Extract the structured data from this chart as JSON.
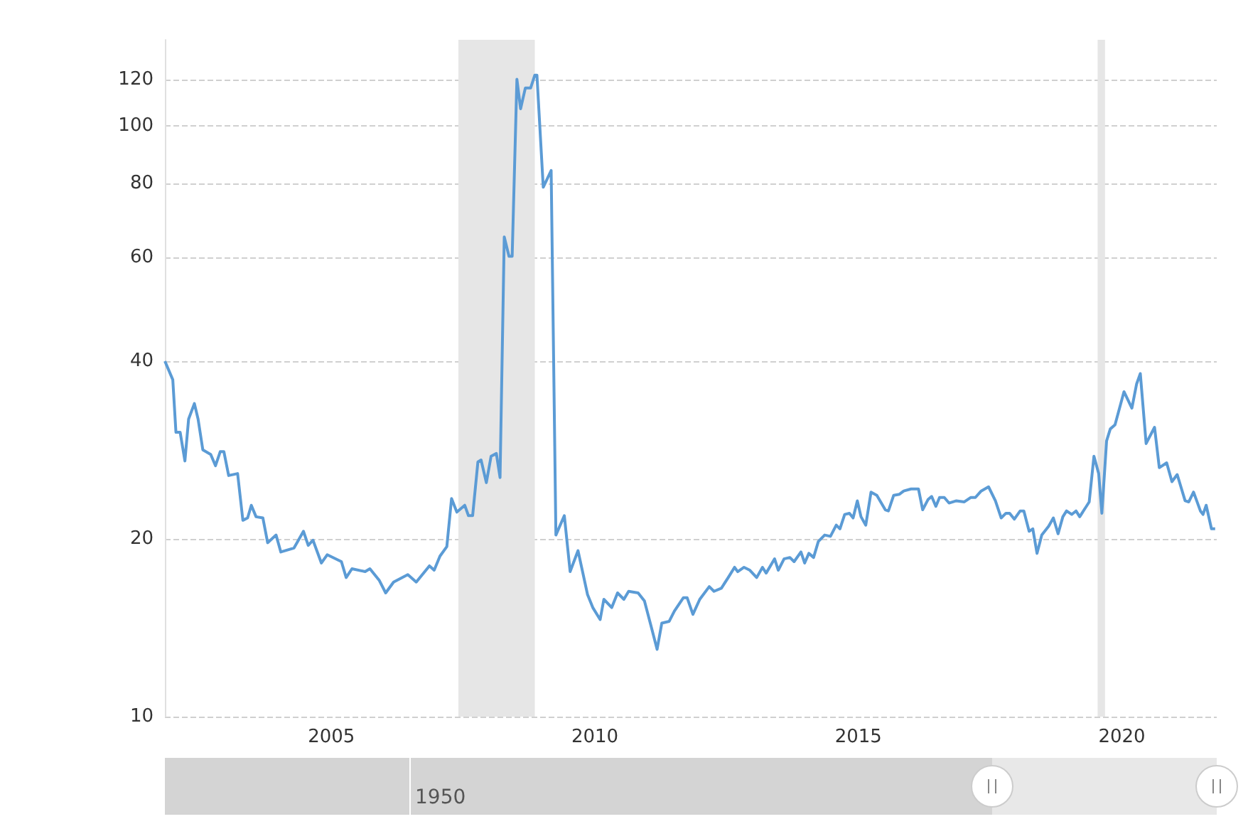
{
  "chart_data": {
    "type": "line",
    "x": [
      2001.84,
      2001.99,
      2002.05,
      2002.13,
      2002.22,
      2002.29,
      2002.4,
      2002.47,
      2002.56,
      2002.71,
      2002.8,
      2002.89,
      2002.96,
      2003.05,
      2003.22,
      2003.32,
      2003.41,
      2003.48,
      2003.57,
      2003.7,
      2003.79,
      2003.95,
      2004.04,
      2004.29,
      2004.47,
      2004.56,
      2004.65,
      2004.81,
      2004.92,
      2005.19,
      2005.28,
      2005.39,
      2005.64,
      2005.73,
      2005.91,
      2006.03,
      2006.18,
      2006.45,
      2006.61,
      2006.86,
      2006.95,
      2007.06,
      2007.19,
      2007.28,
      2007.38,
      2007.53,
      2007.6,
      2007.68,
      2007.78,
      2007.84,
      2007.94,
      2008.03,
      2008.13,
      2008.2,
      2008.28,
      2008.37,
      2008.43,
      2008.52,
      2008.59,
      2008.68,
      2008.78,
      2008.86,
      2008.9,
      2009.02,
      2009.17,
      2009.26,
      2009.42,
      2009.53,
      2009.68,
      2009.86,
      2009.96,
      2010.1,
      2010.17,
      2010.32,
      2010.43,
      2010.55,
      2010.64,
      2010.82,
      2010.94,
      2011.06,
      2011.18,
      2011.27,
      2011.41,
      2011.51,
      2011.68,
      2011.75,
      2011.86,
      2011.99,
      2012.17,
      2012.26,
      2012.4,
      2012.53,
      2012.65,
      2012.71,
      2012.83,
      2012.94,
      2013.07,
      2013.18,
      2013.25,
      2013.41,
      2013.48,
      2013.59,
      2013.7,
      2013.78,
      2013.91,
      2013.98,
      2014.06,
      2014.15,
      2014.24,
      2014.36,
      2014.47,
      2014.58,
      2014.65,
      2014.74,
      2014.83,
      2014.9,
      2014.98,
      2015.05,
      2015.14,
      2015.24,
      2015.35,
      2015.51,
      2015.57,
      2015.67,
      2015.78,
      2015.86,
      2016.0,
      2016.14,
      2016.22,
      2016.32,
      2016.39,
      2016.47,
      2016.54,
      2016.63,
      2016.72,
      2016.86,
      2017.01,
      2017.13,
      2017.22,
      2017.33,
      2017.47,
      2017.6,
      2017.71,
      2017.8,
      2017.87,
      2017.96,
      2018.07,
      2018.14,
      2018.24,
      2018.31,
      2018.39,
      2018.48,
      2018.61,
      2018.7,
      2018.79,
      2018.88,
      2018.95,
      2019.05,
      2019.13,
      2019.2,
      2019.38,
      2019.47,
      2019.56,
      2019.62,
      2019.71,
      2019.78,
      2019.87,
      2020.04,
      2020.19,
      2020.28,
      2020.35,
      2020.46,
      2020.62,
      2020.71,
      2020.85,
      2020.95,
      2021.05,
      2021.2,
      2021.27,
      2021.36,
      2021.49,
      2021.54,
      2021.6,
      2021.7,
      2021.77
    ],
    "series": [
      {
        "color": "#5b9bd5",
        "values": [
          40,
          37.2,
          30.3,
          30.3,
          27.1,
          31.9,
          33.9,
          31.9,
          28.3,
          27.8,
          26.6,
          28.1,
          28.1,
          25.6,
          25.8,
          21.5,
          21.7,
          22.8,
          21.8,
          21.7,
          19.7,
          20.3,
          19.0,
          19.3,
          20.6,
          19.5,
          19.9,
          18.2,
          18.8,
          18.3,
          17.2,
          17.8,
          17.6,
          17.8,
          17.0,
          16.2,
          16.9,
          17.4,
          16.9,
          18.0,
          17.7,
          18.7,
          19.4,
          23.4,
          22.2,
          22.8,
          21.9,
          21.9,
          27.0,
          27.2,
          24.9,
          27.6,
          27.9,
          25.4,
          64.9,
          60.2,
          60.2,
          120,
          107,
          116,
          116,
          122,
          122,
          78.8,
          84.1,
          20.3,
          21.9,
          17.6,
          19.1,
          16.1,
          15.3,
          14.6,
          15.8,
          15.3,
          16.2,
          15.8,
          16.3,
          16.2,
          15.7,
          14.3,
          13.0,
          14.4,
          14.5,
          15.1,
          15.9,
          15.9,
          14.9,
          15.8,
          16.6,
          16.3,
          16.5,
          17.2,
          17.9,
          17.6,
          17.9,
          17.7,
          17.2,
          17.9,
          17.5,
          18.5,
          17.7,
          18.5,
          18.6,
          18.3,
          19.0,
          18.2,
          18.9,
          18.6,
          19.8,
          20.3,
          20.2,
          21.1,
          20.8,
          22.0,
          22.1,
          21.7,
          23.2,
          21.8,
          21.1,
          24.0,
          23.7,
          22.4,
          22.3,
          23.7,
          23.8,
          24.1,
          24.3,
          24.3,
          22.4,
          23.3,
          23.6,
          22.7,
          23.5,
          23.5,
          23.0,
          23.2,
          23.1,
          23.5,
          23.5,
          24.1,
          24.5,
          23.2,
          21.7,
          22.1,
          22.1,
          21.6,
          22.3,
          22.3,
          20.6,
          20.8,
          18.9,
          20.3,
          21.0,
          21.7,
          20.4,
          21.8,
          22.3,
          22.0,
          22.3,
          21.8,
          23.1,
          27.6,
          25.8,
          22.1,
          29.3,
          30.7,
          31.2,
          35.5,
          33.3,
          36.6,
          38.1,
          29.0,
          30.9,
          26.4,
          26.9,
          25.0,
          25.7,
          23.2,
          23.1,
          24.0,
          22.3,
          22.0,
          22.8,
          20.8,
          20.8
        ]
      }
    ],
    "xlim": [
      2001.84,
      2021.8
    ],
    "xticks": [
      2005,
      2010,
      2015,
      2020
    ],
    "ylim": [
      10,
      140
    ],
    "yticks": [
      10,
      20,
      40,
      60,
      80,
      100,
      120
    ],
    "log": "y",
    "grid": "y",
    "marker": "none",
    "line_style": "solid",
    "bands": [
      {
        "axis": "x",
        "from": 2007.41,
        "to": 2008.86,
        "color": "#e6e6e6"
      },
      {
        "axis": "x",
        "from": 2019.54,
        "to": 2019.68,
        "color": "#e6e6e6"
      }
    ],
    "annotations": [
      "1950"
    ]
  }
}
